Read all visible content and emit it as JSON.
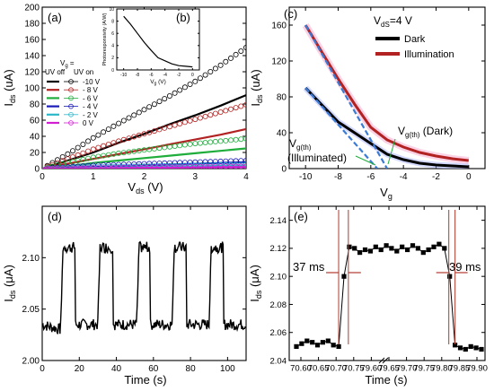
{
  "figure_colors": {
    "frame": "#000000"
  },
  "panels": {
    "a": {
      "letter": "(a)",
      "xlabel_main": "V",
      "xlabel_sub": "ds",
      "xlabel_unit": " (V)",
      "ylabel_main": "I",
      "ylabel_sub": "ds",
      "ylabel_unit": " (uA)",
      "legend_header_v": "V",
      "legend_header_g": "g",
      "legend_header_eq": " =",
      "legend_uvoff": "UV off",
      "legend_uvon": "UV on"
    },
    "b": {
      "letter": "(b)",
      "ylabel": "Photoresponsivity (A/W)",
      "xlabel_main": "V",
      "xlabel_sub": "g",
      "xlabel_unit": " (V)"
    },
    "c": {
      "letter": "(c)",
      "condition_main": "V",
      "condition_sub": "dS",
      "condition_rest": "=4 V",
      "xlabel_main": "V",
      "xlabel_sub": "g",
      "ylabel_main": "I",
      "ylabel_sub": "ds",
      "ylabel_unit": " (uA)",
      "annot_dark_main": "V",
      "annot_dark_sub": "g(th)",
      "annot_dark_rest": " (Dark)",
      "annot_ill_main": "V",
      "annot_ill_sub": "g(th)",
      "annot_ill_rest": "(Illuminated)"
    },
    "d": {
      "letter": "(d)",
      "xlabel": "Time (s)",
      "ylabel_main": "I",
      "ylabel_sub": "ds",
      "ylabel_unit": " (μA)"
    },
    "e": {
      "letter": "(e)",
      "xlabel": "Time (s)",
      "ylabel_main": "I",
      "ylabel_sub": "ds",
      "ylabel_unit": " (μA)",
      "rise_label": "37 ms",
      "fall_label": "39 ms",
      "annotation_color": "#b03a2e"
    }
  },
  "chart_data": [
    {
      "id": "a",
      "type": "line",
      "xlabel": "Vds (V)",
      "ylabel": "Ids (uA)",
      "xlim": [
        0,
        4
      ],
      "ylim": [
        0,
        200
      ],
      "xticks": [
        "0",
        "1",
        "2",
        "3",
        "4"
      ],
      "yticks": [
        "0",
        "20",
        "40",
        "60",
        "80",
        "100",
        "120",
        "140",
        "160",
        "180",
        "200"
      ],
      "x": [
        0,
        0.5,
        1,
        1.5,
        2,
        2.5,
        3,
        3.5,
        4
      ],
      "series": [
        {
          "name": "-10 V",
          "color": "#000000",
          "dark": [
            0,
            10,
            20,
            32,
            43,
            55,
            66,
            78,
            91
          ],
          "uv": [
            0,
            18,
            38,
            56,
            73,
            90,
            108,
            128,
            150
          ]
        },
        {
          "name": "- 8 V",
          "color": "#b22222",
          "dark": [
            0,
            6,
            12,
            18,
            24,
            30,
            36,
            42,
            49
          ],
          "uv": [
            0,
            12,
            24,
            34,
            43,
            52,
            61,
            70,
            79
          ]
        },
        {
          "name": "- 6 V",
          "color": "#1fae3c",
          "dark": [
            0,
            3,
            7,
            10,
            13,
            16,
            19,
            22,
            25
          ],
          "uv": [
            0,
            7,
            14,
            19,
            23,
            27,
            31,
            34,
            37
          ]
        },
        {
          "name": "- 4 V",
          "color": "#1a1ab8",
          "dark": [
            0,
            1,
            2,
            3,
            4,
            5,
            6,
            7,
            8
          ],
          "uv": [
            0,
            2,
            4,
            5,
            6,
            7,
            8,
            9,
            10
          ]
        },
        {
          "name": "- 2 V",
          "color": "#2ab7c9",
          "dark": [
            0,
            0.5,
            1,
            1.5,
            2,
            2.5,
            3,
            3.5,
            4
          ],
          "uv": [
            0,
            1,
            2,
            2.5,
            3,
            3.5,
            4,
            4.5,
            5
          ]
        },
        {
          "name": "0 V",
          "color": "#d21fd2",
          "dark": [
            0,
            0.2,
            0.5,
            0.8,
            1,
            1.2,
            1.5,
            1.8,
            2
          ],
          "uv": [
            0,
            0.4,
            0.8,
            1.2,
            1.6,
            2,
            2.4,
            2.8,
            3
          ]
        }
      ]
    },
    {
      "id": "b",
      "type": "line",
      "xlabel": "Vg (V)",
      "ylabel": "Photoresponsivity (A/W)",
      "xlim": [
        -11,
        1
      ],
      "ylim": [
        0,
        10
      ],
      "xticks": [
        "-10",
        "-8",
        "-6",
        "-4",
        "-2",
        "0"
      ],
      "yticks": [
        "0",
        "2",
        "4",
        "6",
        "8",
        "10"
      ],
      "x": [
        -10,
        -9,
        -8,
        -7,
        -6,
        -5,
        -4,
        -3,
        -2,
        -1,
        0
      ],
      "values": [
        8.8,
        7.5,
        6.0,
        4.5,
        3.2,
        2.0,
        1.5,
        1.0,
        0.7,
        0.6,
        0.5
      ]
    },
    {
      "id": "c",
      "type": "line",
      "xlabel": "Vg",
      "ylabel": "Ids (uA)",
      "xlim": [
        -11,
        1
      ],
      "ylim": [
        0,
        180
      ],
      "xticks": [
        "-10",
        "-8",
        "-6",
        "-4",
        "-2",
        "0"
      ],
      "yticks": [
        "0",
        "40",
        "80",
        "120",
        "160"
      ],
      "x": [
        -10,
        -9,
        -8,
        -7,
        -6,
        -5,
        -4,
        -3,
        -2,
        -1,
        0
      ],
      "series": [
        {
          "name": "Dark",
          "color": "#000000",
          "values": [
            90,
            71,
            52,
            40,
            28,
            16,
            10,
            6,
            4,
            3,
            2
          ]
        },
        {
          "name": "Illumination",
          "color": "#b22222",
          "values": [
            160,
            130,
            100,
            72,
            46,
            32,
            24,
            18,
            14,
            11,
            9
          ]
        }
      ],
      "thresholds": {
        "dark": -5.6,
        "illuminated": -5.0
      }
    },
    {
      "id": "d",
      "type": "line",
      "xlabel": "Time (s)",
      "ylabel": "Ids (μA)",
      "xlim": [
        0,
        110
      ],
      "ylim": [
        2.0,
        2.15
      ],
      "xticks": [
        "0",
        "20",
        "40",
        "60",
        "80",
        "100"
      ],
      "yticks": [
        "2.00",
        "2.05",
        "2.10"
      ],
      "cycles": [
        [
          10,
          18
        ],
        [
          30,
          38
        ],
        [
          51,
          58
        ],
        [
          70,
          78
        ],
        [
          90,
          98
        ]
      ],
      "low": 2.035,
      "high": 2.11
    },
    {
      "id": "e",
      "type": "scatter",
      "xlabel": "Time (s)",
      "ylabel": "Ids (μA)",
      "ylim": [
        2.04,
        2.15
      ],
      "xticks": [
        "70.60",
        "70.65",
        "70.70",
        "70.75",
        "79.60",
        "79.65",
        "79.70",
        "79.75",
        "79.80",
        "79.85",
        "79.90"
      ],
      "yticks": [
        "2.04",
        "2.06",
        "2.08",
        "2.10",
        "2.12",
        "2.14"
      ],
      "values": [
        2.05,
        2.052,
        2.054,
        2.053,
        2.051,
        2.053,
        2.054,
        2.051,
        2.05,
        2.1,
        2.121,
        2.12,
        2.117,
        2.119,
        2.118,
        2.121,
        2.119,
        2.122,
        2.12,
        2.118,
        2.121,
        2.119,
        2.122,
        2.12,
        2.117,
        2.119,
        2.121,
        2.123,
        2.12,
        2.1,
        2.051,
        2.049,
        2.048,
        2.05,
        2.049,
        2.048
      ]
    }
  ]
}
